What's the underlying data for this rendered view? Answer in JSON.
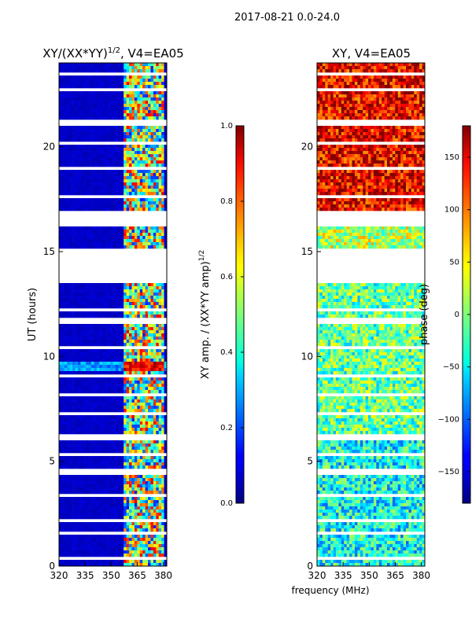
{
  "figure_title": "2017-08-21 0.0-24.0",
  "chart_data": [
    {
      "type": "heatmap",
      "title_main": "XY/(XX*YY)",
      "title_sup": "1/2",
      "title_suffix": ", V4=EA05",
      "xlabel": "",
      "ylabel": "UT (hours)",
      "xlim": [
        320,
        382
      ],
      "ylim": [
        0,
        24
      ],
      "xticks": [
        320,
        335,
        350,
        365,
        380
      ],
      "yticks": [
        0,
        5,
        10,
        15,
        20
      ],
      "colorbar": {
        "label_main": "XY amp. / (XX*YY amp)",
        "label_sup": "1/2",
        "range": [
          0.0,
          1.0
        ],
        "ticks": [
          "0.0",
          "0.2",
          "0.4",
          "0.6",
          "0.8",
          "1.0"
        ],
        "colormap": "jet"
      },
      "bright_band_x": [
        357,
        381
      ],
      "background_value": 0.05,
      "highlight_hours": [
        9.3,
        9.7
      ]
    },
    {
      "type": "heatmap",
      "title_main": "XY",
      "title_sup": "",
      "title_suffix": ", V4=EA05",
      "xlabel": "frequency (MHz)",
      "ylabel": "",
      "xlim": [
        320,
        382
      ],
      "ylim": [
        0,
        24
      ],
      "xticks": [
        320,
        335,
        350,
        365,
        380
      ],
      "yticks": [
        0,
        5,
        10,
        15,
        20
      ],
      "colorbar": {
        "label_main": "phase (deg)",
        "label_sup": "",
        "range": [
          -180,
          180
        ],
        "ticks": [
          "−150",
          "−100",
          "−50",
          "0",
          "50",
          "100",
          "150"
        ],
        "colormap": "jet"
      },
      "phase_bands": [
        {
          "from": 0,
          "to": 6,
          "mean": -40
        },
        {
          "from": 6,
          "to": 13.5,
          "mean": -10
        },
        {
          "from": 15.1,
          "to": 16.2,
          "mean": 20
        },
        {
          "from": 16.2,
          "to": 24,
          "mean": 140
        }
      ]
    }
  ],
  "gaps_hours": [
    [
      13.5,
      15.1
    ],
    [
      16.2,
      16.9
    ],
    [
      21.0,
      21.3
    ],
    [
      6.0,
      6.25
    ],
    [
      4.4,
      4.7
    ],
    [
      11.6,
      11.8
    ],
    [
      18.9,
      19.05
    ],
    [
      2.1,
      2.25
    ],
    [
      1.55,
      1.65
    ],
    [
      9.0,
      9.1
    ],
    [
      10.3,
      10.45
    ],
    [
      12.2,
      12.35
    ],
    [
      22.6,
      22.75
    ],
    [
      23.4,
      23.5
    ],
    [
      3.3,
      3.4
    ],
    [
      5.3,
      5.4
    ],
    [
      7.2,
      7.3
    ],
    [
      8.1,
      8.2
    ],
    [
      17.6,
      17.7
    ],
    [
      20.1,
      20.2
    ],
    [
      0.3,
      0.4
    ],
    [
      14.95,
      15.05
    ]
  ]
}
